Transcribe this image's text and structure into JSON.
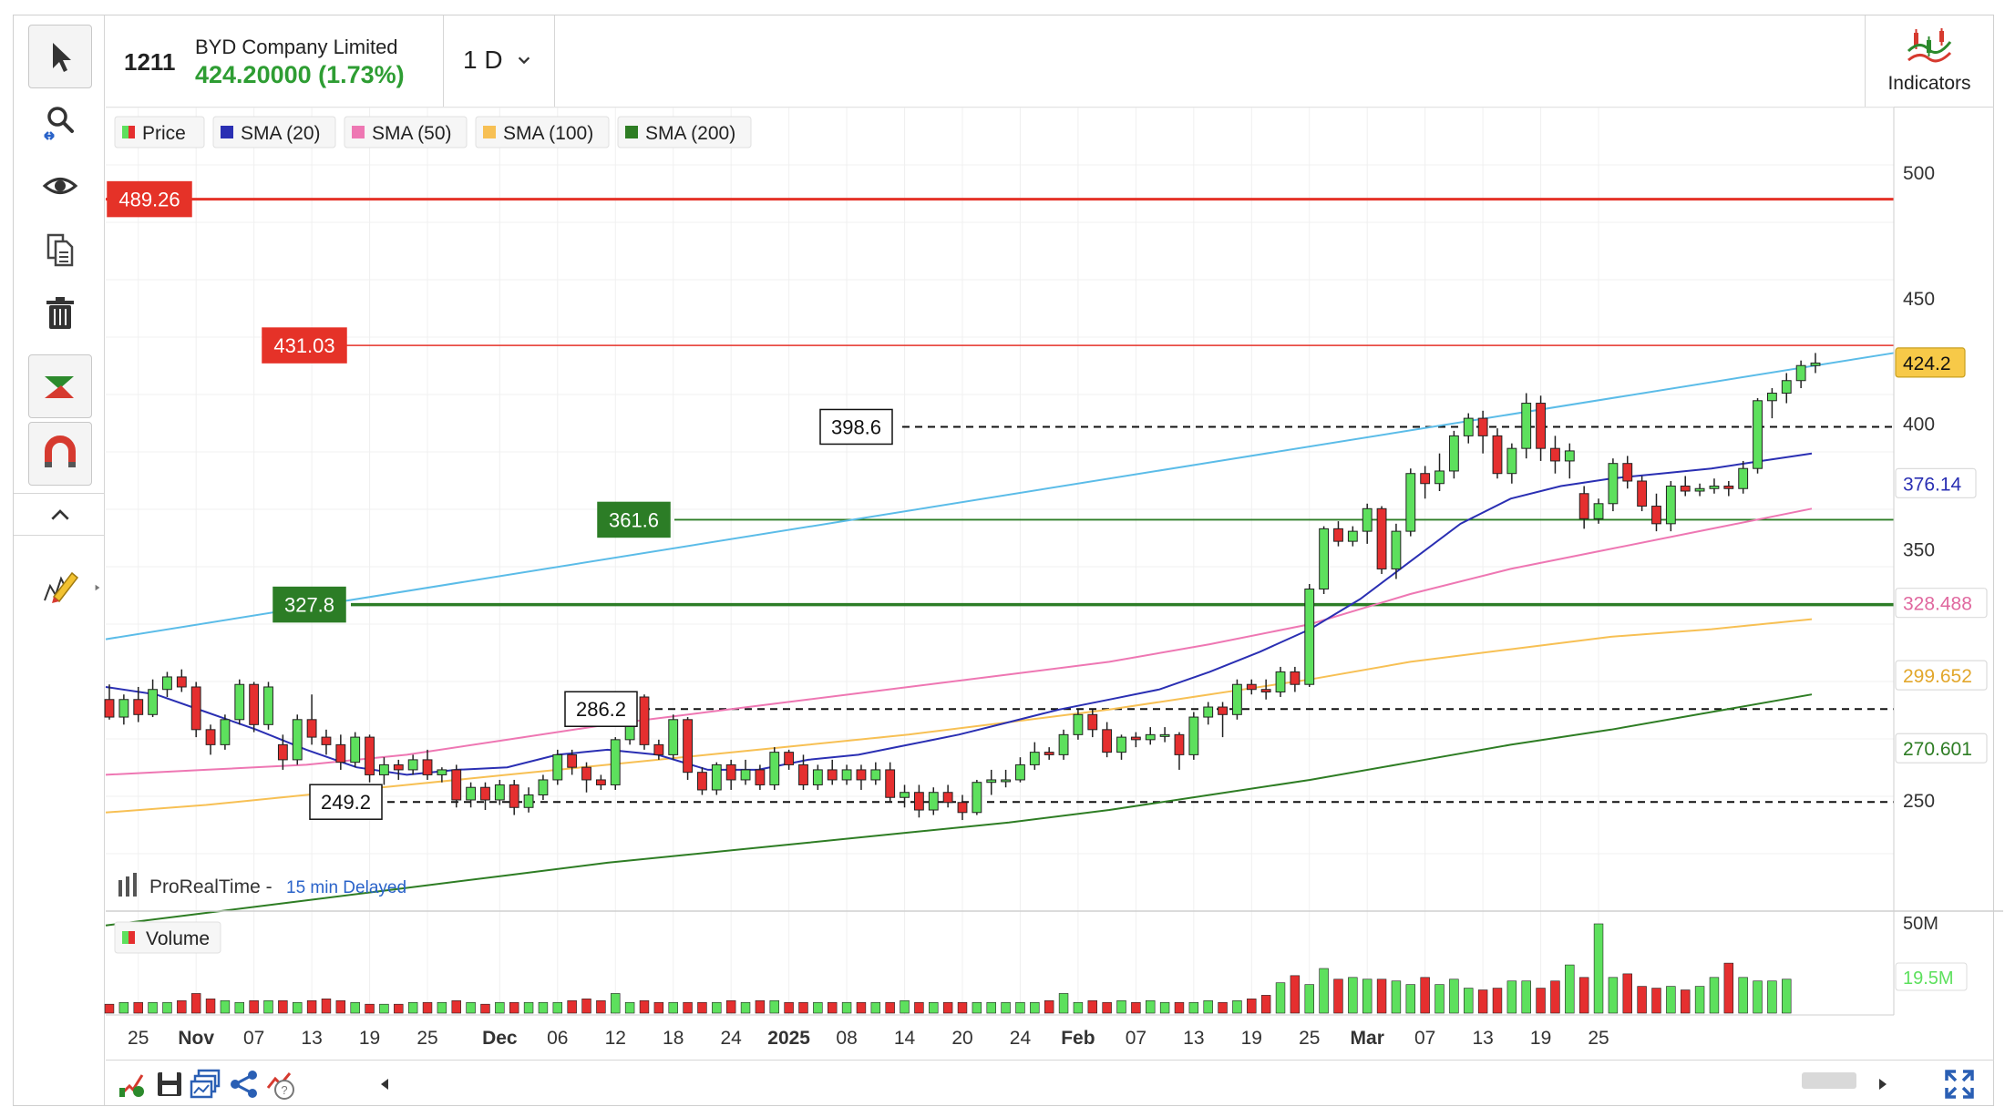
{
  "header": {
    "symbol": "1211",
    "company": "BYD Company Limited",
    "price_change": "424.20000 (1.73%)",
    "timeframe": "1 D",
    "indicators_label": "Indicators"
  },
  "legend": {
    "price": "Price",
    "items": [
      "SMA (20)",
      "SMA (50)",
      "SMA (100)",
      "SMA (200)"
    ],
    "volume": "Volume"
  },
  "watermark": {
    "brand": "ProRealTime",
    "separator": " - ",
    "delay": "15 min Delayed"
  },
  "colors": {
    "up": "#5de05d",
    "down": "#e52f2f",
    "sma20": "#2a2fb3",
    "sma50": "#ee77b3",
    "sma100": "#f7c054",
    "sma200": "#2e7d24",
    "trend": "#5bbce8",
    "price_label": "#f7c948",
    "alert_red": "#e53228",
    "support_green": "#2c7d26"
  },
  "toolbar": {
    "tools": [
      "pointer-icon",
      "zoom-icon",
      "eye-icon",
      "copy-icon",
      "trash-icon",
      "chart-type-icon",
      "magnet-icon"
    ],
    "collapse": "chevron-up-icon",
    "draw": "pencil-icon"
  },
  "bottombar": {
    "icons": [
      "settings-icon",
      "save-icon",
      "layouts-icon",
      "share-icon",
      "alert-icon"
    ],
    "nav_left": "scroll-left-icon",
    "nav_right": "scroll-right-icon",
    "fullscreen": "fullscreen-icon"
  },
  "chart_data": {
    "type": "candlestick",
    "y_axis_ticks": [
      500,
      450,
      400,
      350,
      250
    ],
    "ylim": [
      200,
      525
    ],
    "x_axis_labels": [
      {
        "label": "25",
        "bar": 2
      },
      {
        "label": "Nov",
        "bar": 6
      },
      {
        "label": "07",
        "bar": 10
      },
      {
        "label": "13",
        "bar": 14
      },
      {
        "label": "19",
        "bar": 18
      },
      {
        "label": "25",
        "bar": 22
      },
      {
        "label": "Dec",
        "bar": 27
      },
      {
        "label": "06",
        "bar": 31
      },
      {
        "label": "12",
        "bar": 35
      },
      {
        "label": "18",
        "bar": 39
      },
      {
        "label": "24",
        "bar": 43
      },
      {
        "label": "2025",
        "bar": 47
      },
      {
        "label": "08",
        "bar": 51
      },
      {
        "label": "14",
        "bar": 55
      },
      {
        "label": "20",
        "bar": 59
      },
      {
        "label": "24",
        "bar": 63
      },
      {
        "label": "Feb",
        "bar": 67
      },
      {
        "label": "07",
        "bar": 71
      },
      {
        "label": "13",
        "bar": 75
      },
      {
        "label": "19",
        "bar": 79
      },
      {
        "label": "25",
        "bar": 83
      },
      {
        "label": "Mar",
        "bar": 87
      },
      {
        "label": "07",
        "bar": 91
      },
      {
        "label": "13",
        "bar": 95
      },
      {
        "label": "19",
        "bar": 99
      },
      {
        "label": "25",
        "bar": 103
      }
    ],
    "candles": [
      [
        290,
        283,
        296,
        282
      ],
      [
        283,
        290,
        292,
        280
      ],
      [
        290,
        284,
        295,
        281
      ],
      [
        284,
        294,
        298,
        283
      ],
      [
        294,
        299,
        301,
        291
      ],
      [
        299,
        295,
        302,
        293
      ],
      [
        295,
        278,
        297,
        275
      ],
      [
        278,
        272,
        280,
        268
      ],
      [
        272,
        282,
        284,
        270
      ],
      [
        282,
        296,
        298,
        280
      ],
      [
        296,
        280,
        297,
        277
      ],
      [
        280,
        295,
        297,
        278
      ],
      [
        272,
        266,
        276,
        262
      ],
      [
        266,
        282,
        284,
        264
      ],
      [
        282,
        275,
        292,
        272
      ],
      [
        275,
        272,
        278,
        268
      ],
      [
        272,
        265,
        276,
        262
      ],
      [
        265,
        275,
        277,
        263
      ],
      [
        275,
        260,
        276,
        257
      ],
      [
        260,
        264,
        267,
        256
      ],
      [
        264,
        262,
        266,
        258
      ],
      [
        262,
        266,
        268,
        260
      ],
      [
        266,
        260,
        270,
        258
      ],
      [
        260,
        262,
        263,
        257
      ],
      [
        262,
        250,
        264,
        247
      ],
      [
        250,
        255,
        257,
        247
      ],
      [
        255,
        250,
        257,
        246
      ],
      [
        250,
        256,
        258,
        248
      ],
      [
        256,
        247,
        258,
        244
      ],
      [
        247,
        252,
        255,
        245
      ],
      [
        252,
        258,
        260,
        250
      ],
      [
        258,
        268,
        270,
        256
      ],
      [
        268,
        263,
        270,
        260
      ],
      [
        263,
        258,
        265,
        253
      ],
      [
        258,
        256,
        260,
        254
      ],
      [
        256,
        274,
        275,
        254
      ],
      [
        274,
        291,
        292,
        272
      ],
      [
        291,
        272,
        292,
        270
      ],
      [
        272,
        268,
        274,
        266
      ],
      [
        268,
        282,
        284,
        266
      ],
      [
        282,
        261,
        283,
        258
      ],
      [
        261,
        254,
        263,
        252
      ],
      [
        254,
        264,
        265,
        252
      ],
      [
        264,
        258,
        266,
        254
      ],
      [
        258,
        262,
        266,
        256
      ],
      [
        262,
        256,
        264,
        254
      ],
      [
        256,
        269,
        271,
        254
      ],
      [
        269,
        264,
        270,
        262
      ],
      [
        264,
        256,
        268,
        254
      ],
      [
        256,
        262,
        264,
        254
      ],
      [
        262,
        258,
        266,
        256
      ],
      [
        258,
        262,
        264,
        256
      ],
      [
        262,
        258,
        264,
        254
      ],
      [
        258,
        262,
        265,
        256
      ],
      [
        262,
        251,
        265,
        249
      ],
      [
        251,
        253,
        256,
        247
      ],
      [
        253,
        246,
        256,
        243
      ],
      [
        246,
        253,
        255,
        244
      ],
      [
        253,
        249,
        256,
        247
      ],
      [
        249,
        245,
        252,
        242
      ],
      [
        245,
        257,
        258,
        244
      ],
      [
        257,
        258,
        262,
        252
      ],
      [
        258,
        258,
        262,
        255
      ],
      [
        258,
        264,
        267,
        257
      ],
      [
        264,
        269,
        273,
        262
      ],
      [
        269,
        268,
        271,
        266
      ],
      [
        268,
        276,
        278,
        266
      ],
      [
        276,
        284,
        286,
        274
      ],
      [
        284,
        278,
        286,
        275
      ],
      [
        278,
        269,
        281,
        267
      ],
      [
        269,
        275,
        276,
        266
      ],
      [
        275,
        274,
        277,
        271
      ],
      [
        274,
        276,
        279,
        272
      ],
      [
        276,
        276,
        279,
        273
      ],
      [
        276,
        268,
        277,
        262
      ],
      [
        268,
        283,
        285,
        266
      ],
      [
        283,
        287,
        289,
        280
      ],
      [
        287,
        284,
        289,
        275
      ],
      [
        284,
        296,
        298,
        282
      ],
      [
        296,
        294,
        298,
        292
      ],
      [
        294,
        293,
        298,
        290
      ],
      [
        293,
        301,
        303,
        291
      ],
      [
        301,
        296,
        303,
        293
      ],
      [
        296,
        334,
        336,
        295
      ],
      [
        334,
        358,
        359,
        332
      ],
      [
        358,
        353,
        361,
        351
      ],
      [
        353,
        357,
        359,
        351
      ],
      [
        357,
        366,
        368,
        352
      ],
      [
        366,
        342,
        367,
        340
      ],
      [
        342,
        357,
        360,
        338
      ],
      [
        357,
        380,
        382,
        355
      ],
      [
        380,
        376,
        383,
        370
      ],
      [
        376,
        381,
        388,
        373
      ],
      [
        381,
        395,
        397,
        378
      ],
      [
        395,
        402,
        404,
        392
      ],
      [
        402,
        395,
        405,
        388
      ],
      [
        395,
        380,
        398,
        378
      ],
      [
        380,
        390,
        392,
        376
      ],
      [
        390,
        408,
        412,
        386
      ],
      [
        408,
        390,
        411,
        385
      ],
      [
        390,
        385,
        395,
        380
      ],
      [
        385,
        389,
        392,
        378
      ],
      [
        372,
        362,
        375,
        358
      ],
      [
        362,
        368,
        370,
        360
      ],
      [
        368,
        384,
        386,
        365
      ],
      [
        384,
        377,
        387,
        374
      ],
      [
        377,
        367,
        379,
        365
      ],
      [
        367,
        360,
        372,
        357
      ],
      [
        360,
        375,
        377,
        357
      ],
      [
        375,
        373,
        379,
        371
      ],
      [
        373,
        374,
        376,
        371
      ],
      [
        374,
        375,
        378,
        372
      ],
      [
        375,
        374,
        377,
        371
      ],
      [
        374,
        382,
        385,
        372
      ],
      [
        382,
        409,
        410,
        380
      ],
      [
        409,
        412,
        414,
        402
      ],
      [
        412,
        417,
        420,
        408
      ],
      [
        417,
        423,
        425,
        414
      ],
      [
        423,
        424,
        428,
        420
      ]
    ],
    "candles_format": "open, close, high, low (data units)",
    "sma20": [
      [
        0,
        295
      ],
      [
        10,
        292
      ],
      [
        20,
        285
      ],
      [
        30,
        278
      ],
      [
        40,
        270
      ],
      [
        50,
        263
      ],
      [
        60,
        260
      ],
      [
        70,
        262
      ],
      [
        80,
        263
      ],
      [
        90,
        268
      ],
      [
        100,
        270
      ],
      [
        110,
        268
      ],
      [
        120,
        262
      ],
      [
        130,
        262
      ],
      [
        140,
        266
      ],
      [
        150,
        268
      ],
      [
        160,
        272
      ],
      [
        170,
        276
      ],
      [
        180,
        281
      ],
      [
        190,
        286
      ],
      [
        200,
        290
      ],
      [
        210,
        294
      ],
      [
        220,
        301
      ],
      [
        230,
        309
      ],
      [
        240,
        318
      ],
      [
        250,
        330
      ],
      [
        260,
        345
      ],
      [
        270,
        360
      ],
      [
        280,
        370
      ],
      [
        290,
        375
      ],
      [
        300,
        378
      ],
      [
        310,
        380
      ],
      [
        320,
        382
      ],
      [
        330,
        385
      ],
      [
        340,
        388
      ]
    ],
    "sma50": [
      [
        0,
        260
      ],
      [
        20,
        262
      ],
      [
        40,
        264
      ],
      [
        60,
        268
      ],
      [
        80,
        274
      ],
      [
        100,
        280
      ],
      [
        120,
        285
      ],
      [
        140,
        290
      ],
      [
        160,
        295
      ],
      [
        180,
        300
      ],
      [
        200,
        305
      ],
      [
        220,
        312
      ],
      [
        240,
        320
      ],
      [
        260,
        332
      ],
      [
        280,
        342
      ],
      [
        300,
        350
      ],
      [
        320,
        358
      ],
      [
        340,
        366
      ]
    ],
    "sma100": [
      [
        0,
        245
      ],
      [
        20,
        248
      ],
      [
        40,
        252
      ],
      [
        60,
        256
      ],
      [
        80,
        260
      ],
      [
        100,
        264
      ],
      [
        120,
        268
      ],
      [
        140,
        272
      ],
      [
        160,
        276
      ],
      [
        180,
        281
      ],
      [
        200,
        286
      ],
      [
        220,
        292
      ],
      [
        240,
        298
      ],
      [
        260,
        305
      ],
      [
        280,
        310
      ],
      [
        300,
        315
      ],
      [
        320,
        318
      ],
      [
        340,
        322
      ]
    ],
    "sma200": [
      [
        0,
        200
      ],
      [
        20,
        205
      ],
      [
        40,
        210
      ],
      [
        60,
        215
      ],
      [
        80,
        220
      ],
      [
        100,
        225
      ],
      [
        120,
        229
      ],
      [
        140,
        233
      ],
      [
        160,
        237
      ],
      [
        180,
        241
      ],
      [
        200,
        246
      ],
      [
        220,
        252
      ],
      [
        240,
        258
      ],
      [
        260,
        265
      ],
      [
        280,
        272
      ],
      [
        300,
        278
      ],
      [
        320,
        285
      ],
      [
        340,
        292
      ]
    ],
    "horizontal_levels": [
      {
        "label": "489.26",
        "value": 489.26,
        "style": "alert"
      },
      {
        "label": "431.03",
        "value": 431.03,
        "style": "alert-thin"
      },
      {
        "label": "398.6",
        "value": 398.6,
        "style": "dashed"
      },
      {
        "label": "361.6",
        "value": 361.6,
        "style": "support"
      },
      {
        "label": "327.8",
        "value": 327.8,
        "style": "support-thick"
      },
      {
        "label": "286.2",
        "value": 286.2,
        "style": "dashed"
      },
      {
        "label": "249.2",
        "value": 249.2,
        "style": "dashed"
      }
    ],
    "right_labels": [
      {
        "label": "424.2",
        "value": 424.2,
        "kind": "price"
      },
      {
        "label": "376.14",
        "value": 376.14,
        "kind": "sma20"
      },
      {
        "label": "328.488",
        "value": 328.488,
        "kind": "sma50"
      },
      {
        "label": "299.652",
        "value": 299.652,
        "kind": "sma100"
      },
      {
        "label": "270.601",
        "value": 270.601,
        "kind": "sma200"
      }
    ],
    "trendline": {
      "start_value": 314,
      "end_value": 428
    },
    "volume": {
      "axis_labels": [
        "50M",
        "19.5M"
      ],
      "axis_values": [
        50,
        19.5
      ],
      "values_m": [
        5,
        6,
        6,
        6,
        6,
        7,
        11,
        8,
        7,
        6,
        7,
        7,
        7,
        6,
        7,
        8,
        7,
        6,
        5,
        5,
        5,
        6,
        6,
        6,
        7,
        6,
        5,
        6,
        6,
        6,
        6,
        6,
        7,
        8,
        7,
        11,
        6,
        7,
        6,
        6,
        6,
        6,
        6,
        7,
        6,
        7,
        7,
        6,
        6,
        6,
        6,
        6,
        6,
        6,
        6,
        7,
        6,
        6,
        6,
        6,
        6,
        6,
        6,
        6,
        6,
        7,
        11,
        6,
        7,
        6,
        7,
        6,
        7,
        6,
        6,
        6,
        7,
        6,
        7,
        8,
        10,
        17,
        21,
        16,
        25,
        19,
        20,
        19,
        19,
        18,
        16,
        20,
        16,
        19,
        14,
        13,
        14,
        18,
        18,
        14,
        18,
        27,
        20,
        50,
        20,
        22,
        15,
        14,
        15,
        13,
        15,
        20,
        28,
        20,
        18,
        18,
        19
      ]
    }
  }
}
